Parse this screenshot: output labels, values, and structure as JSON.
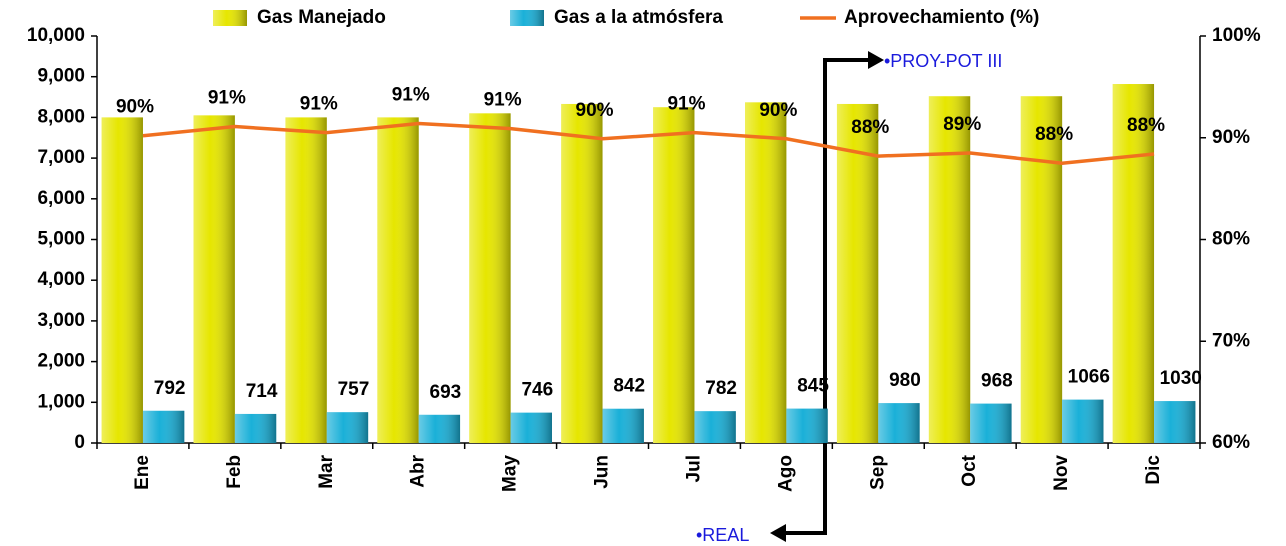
{
  "chart_data": {
    "type": "bar",
    "categories": [
      "Ene",
      "Feb",
      "Mar",
      "Abr",
      "May",
      "Jun",
      "Jul",
      "Ago",
      "Sep",
      "Oct",
      "Nov",
      "Dic"
    ],
    "series": [
      {
        "name": "Gas Manejado",
        "color": "#e6e600",
        "values": [
          8000,
          8050,
          8000,
          8000,
          8100,
          8330,
          8250,
          8370,
          8330,
          8520,
          8520,
          8820
        ]
      },
      {
        "name": "Gas a la atmósfera",
        "color": "#1ab0d8",
        "values": [
          792,
          714,
          757,
          693,
          746,
          842,
          782,
          845,
          980,
          968,
          1066,
          1030
        ]
      },
      {
        "name": "Aprovechamiento (%)",
        "color": "#f07020",
        "axis": "y2",
        "type": "line",
        "values": [
          90.2,
          91.1,
          90.5,
          91.4,
          90.9,
          89.9,
          90.5,
          89.9,
          88.2,
          88.5,
          87.5,
          88.4
        ],
        "value_labels": [
          "90%",
          "91%",
          "91%",
          "91%",
          "91%",
          "90%",
          "91%",
          "90%",
          "88%",
          "89%",
          "88%",
          "88%"
        ]
      }
    ],
    "ylim": [
      0,
      10000
    ],
    "yticks": [
      0,
      {
        "value": 1000,
        "label": "1,000"
      },
      {
        "value": 2000,
        "label": "2,000"
      },
      {
        "value": 3000,
        "label": "3,000"
      },
      {
        "value": 4000,
        "label": "4,000"
      },
      {
        "value": 5000,
        "label": "5,000"
      },
      {
        "value": 6000,
        "label": "6,000"
      },
      {
        "value": 7000,
        "label": "7,000"
      },
      {
        "value": 8000,
        "label": "8,000"
      },
      {
        "value": 9000,
        "label": "9,000"
      },
      {
        "value": 10000,
        "label": "10,000"
      }
    ],
    "y2lim": [
      60,
      100
    ],
    "y2ticks": [
      {
        "value": 60,
        "label": "60%"
      },
      {
        "value": 70,
        "label": "70%"
      },
      {
        "value": 80,
        "label": "80%"
      },
      {
        "value": 90,
        "label": "90%"
      },
      {
        "value": 100,
        "label": "100%"
      }
    ],
    "annotations": [
      "•PROY-POT III",
      "•REAL"
    ],
    "legend": "top"
  }
}
